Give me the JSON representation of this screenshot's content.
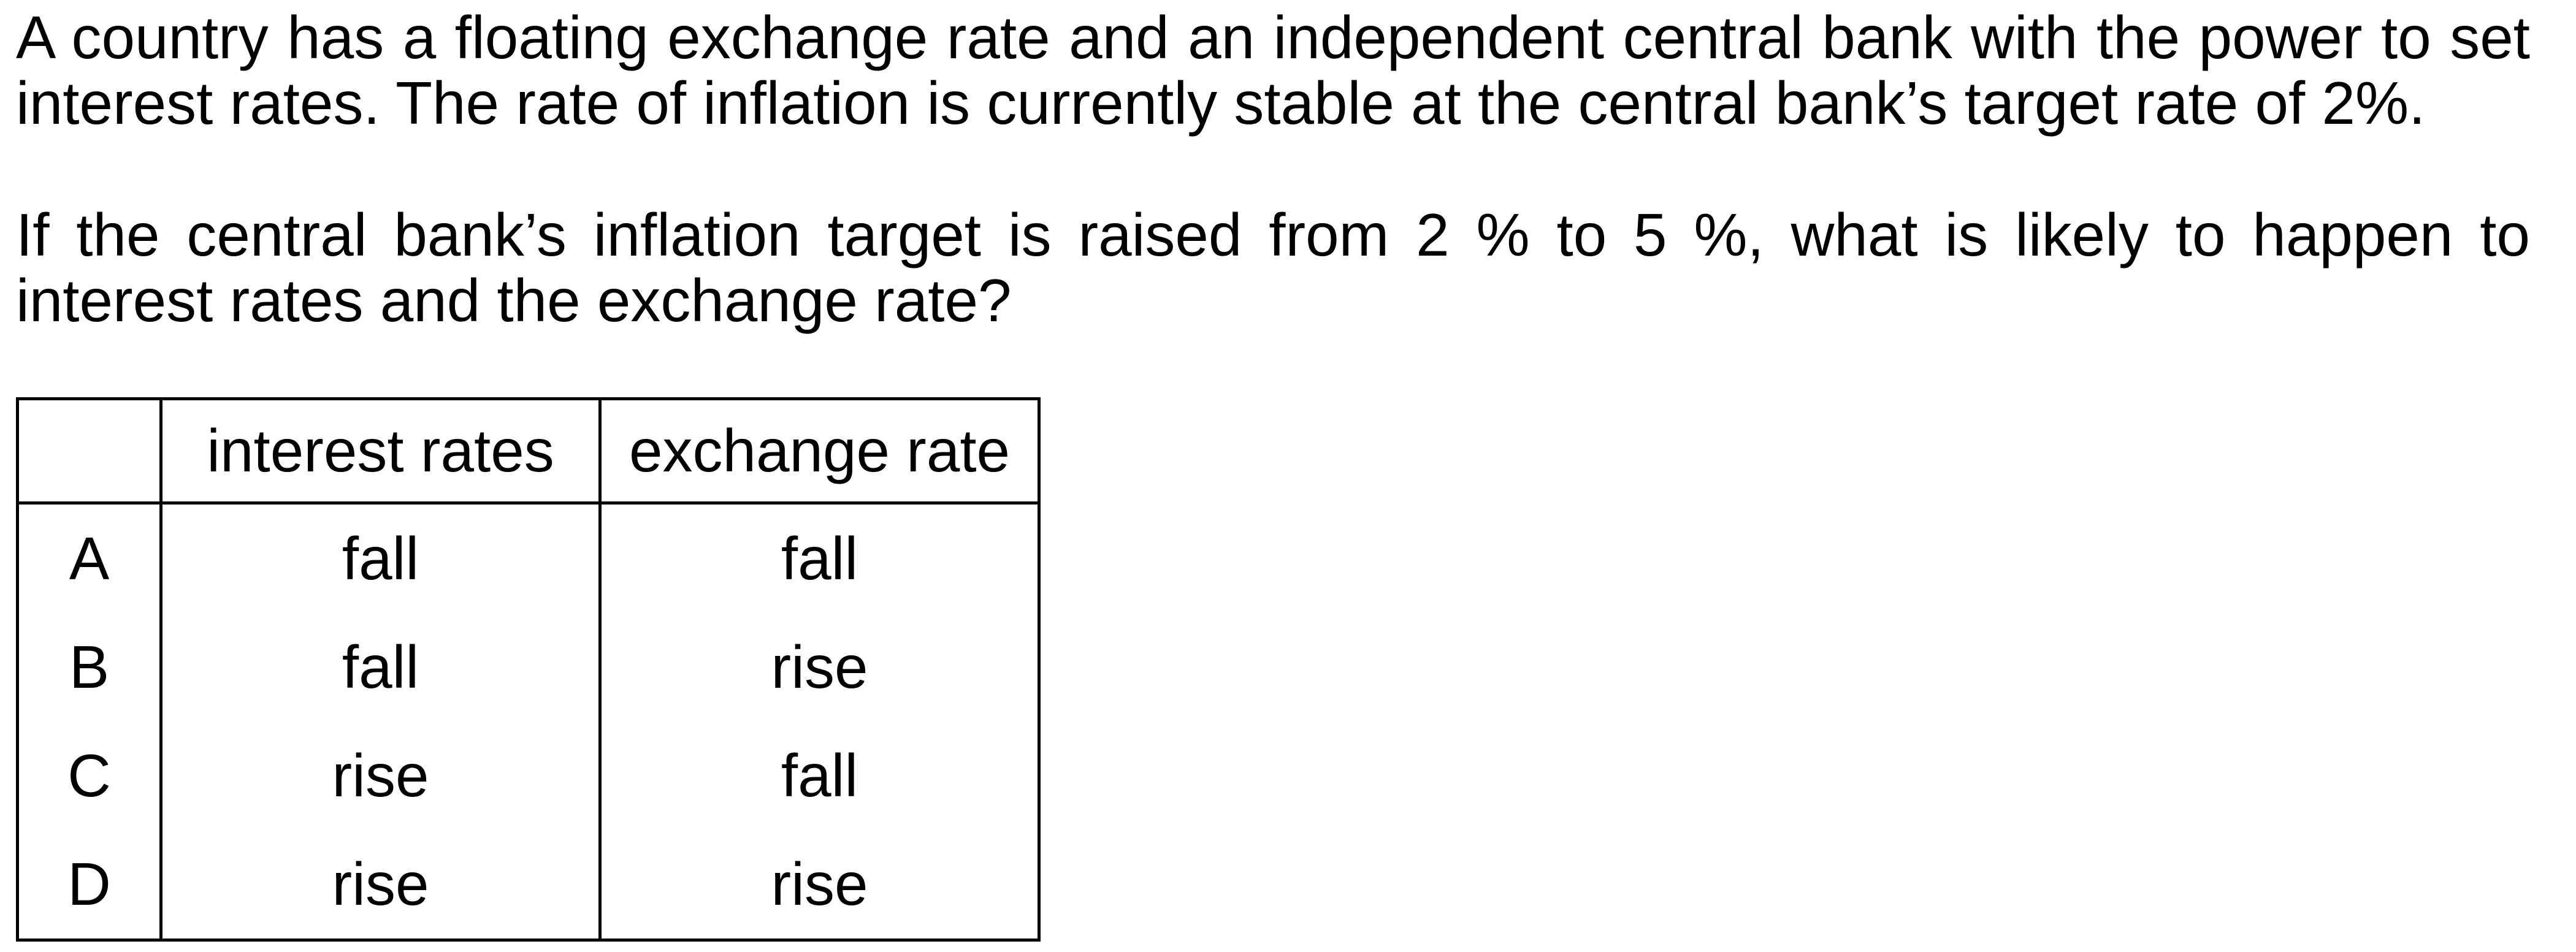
{
  "question": {
    "paragraph_1": "A country has a floating exchange rate and an independent central bank with the power to set interest rates. The rate of inflation is currently stable at the central bank’s target rate of 2%.",
    "paragraph_2": "If the central bank’s inflation target is raised from 2 % to 5 %, what is likely to happen to interest rates and the exchange rate?"
  },
  "table": {
    "headers": [
      "",
      "interest rates",
      "exchange rate"
    ],
    "rows": [
      {
        "letter": "A",
        "interest_rates": "fall",
        "exchange_rate": "fall"
      },
      {
        "letter": "B",
        "interest_rates": "fall",
        "exchange_rate": "rise"
      },
      {
        "letter": "C",
        "interest_rates": "rise",
        "exchange_rate": "fall"
      },
      {
        "letter": "D",
        "interest_rates": "rise",
        "exchange_rate": "rise"
      }
    ]
  }
}
